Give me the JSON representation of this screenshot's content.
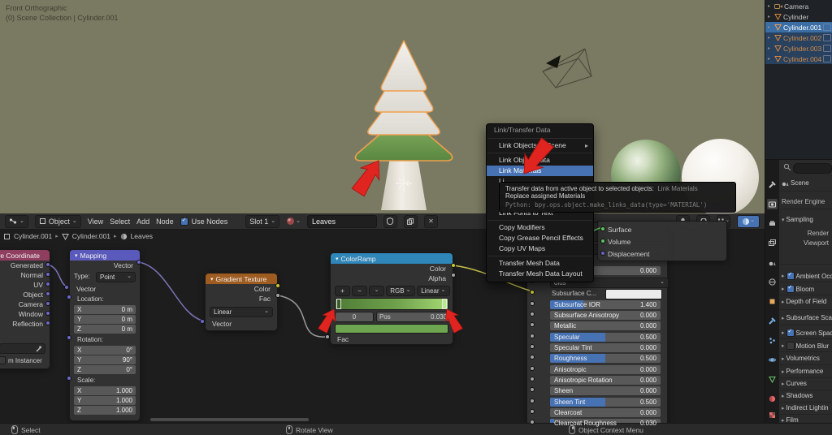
{
  "viewport": {
    "view_label": "Front Orthographic",
    "collection_label": "(0) Scene Collection | Cylinder.001"
  },
  "outliner": {
    "items": [
      {
        "label": "Camera"
      },
      {
        "label": "Cylinder"
      },
      {
        "label": "Cylinder.001"
      },
      {
        "label": "Cylinder.002"
      },
      {
        "label": "Cylinder.003"
      },
      {
        "label": "Cylinder.004"
      }
    ]
  },
  "properties": {
    "scene_label": "Scene",
    "render_engine_label": "Render Engine",
    "sampling_title": "Sampling",
    "sampling_rows": [
      "Render",
      "Viewport"
    ],
    "sections": [
      {
        "label": "Ambient Occ"
      },
      {
        "label": "Bloom"
      },
      {
        "label": "Depth of Field"
      },
      {
        "label": "Subsurface Sca"
      },
      {
        "label": "Screen Spac"
      },
      {
        "label": "Motion Blur"
      },
      {
        "label": "Volumetrics"
      },
      {
        "label": "Performance"
      },
      {
        "label": "Curves"
      },
      {
        "label": "Shadows"
      },
      {
        "label": "Indirect Lightin"
      },
      {
        "label": "Film"
      }
    ]
  },
  "shader": {
    "mode": "Object",
    "menu_view": "View",
    "menu_select": "Select",
    "menu_add": "Add",
    "menu_node": "Node",
    "use_nodes": "Use Nodes",
    "slot": "Slot 1",
    "material_name": "Leaves",
    "breadcrumb": {
      "a": "Cylinder.001",
      "b": "Cylinder.001",
      "c": "Leaves"
    }
  },
  "nodes": {
    "texcoord": {
      "title": "ure Coordinate",
      "outputs": [
        "Generated",
        "Normal",
        "UV",
        "Object",
        "Camera",
        "Window",
        "Reflection"
      ],
      "instancer": "m Instancer"
    },
    "mapping": {
      "title": "Mapping",
      "output": "Vector",
      "type_label": "Type:",
      "type_value": "Point",
      "input": "Vector",
      "loc_label": "Location:",
      "rot_label": "Rotation:",
      "scale_label": "Scale:",
      "loc": [
        {
          "k": "X",
          "v": "0 m"
        },
        {
          "k": "Y",
          "v": "0 m"
        },
        {
          "k": "Z",
          "v": "0 m"
        }
      ],
      "rot": [
        {
          "k": "X",
          "v": "0°"
        },
        {
          "k": "Y",
          "v": "90°"
        },
        {
          "k": "Z",
          "v": "0°"
        }
      ],
      "scale": [
        {
          "k": "X",
          "v": "1.000"
        },
        {
          "k": "Y",
          "v": "1.000"
        },
        {
          "k": "Z",
          "v": "1.000"
        }
      ]
    },
    "gradient": {
      "title": "Gradient Texture",
      "out_color": "Color",
      "out_fac": "Fac",
      "mode": "Linear",
      "input": "Vector"
    },
    "colorramp": {
      "title": "ColorRamp",
      "out_color": "Color",
      "out_alpha": "Alpha",
      "btn_add": "+",
      "btn_sub": "−",
      "mode_rgb": "RGB",
      "mode_interp": "Linear",
      "index": "0",
      "pos_label": "Pos",
      "pos_value": "0.030",
      "input": "Fac"
    },
    "output": {
      "surface": "Surface",
      "volume": "Volume",
      "displacement": "Displacement"
    },
    "principled": {
      "subsurface_value": "0.000",
      "radius_fragment": "dius",
      "color_label": "Subsurface C...",
      "sliders": [
        {
          "label": "Subsurface IOR",
          "value": "1.400",
          "fill": 30
        },
        {
          "label": "Subsurface Anisotropy",
          "value": "0.000",
          "fill": 0
        },
        {
          "label": "Metallic",
          "value": "0.000",
          "fill": 0
        },
        {
          "label": "Specular",
          "value": "0.500",
          "fill": 50
        },
        {
          "label": "Specular Tint",
          "value": "0.000",
          "fill": 0
        },
        {
          "label": "Roughness",
          "value": "0.500",
          "fill": 50
        },
        {
          "label": "Anisotropic",
          "value": "0.000",
          "fill": 0
        },
        {
          "label": "Anisotropic Rotation",
          "value": "0.000",
          "fill": 0
        },
        {
          "label": "Sheen",
          "value": "0.000",
          "fill": 0
        },
        {
          "label": "Sheen Tint",
          "value": "0.500",
          "fill": 50
        },
        {
          "label": "Clearcoat",
          "value": "0.000",
          "fill": 0
        },
        {
          "label": "Clearcoat Roughness",
          "value": "0.030",
          "fill": 4
        }
      ]
    }
  },
  "menu": {
    "title": "Link/Transfer Data",
    "items": [
      "Link Objects to Scene",
      "Link Object Data",
      "Link Materials",
      "Li",
      "Li",
      "Li",
      "Link Fonts to Text",
      "Copy Modifiers",
      "Copy Grease Pencil Effects",
      "Copy UV Maps",
      "Transfer Mesh Data",
      "Transfer Mesh Data Layout"
    ]
  },
  "tooltip": {
    "line1": "Transfer data from active object to selected objects:",
    "line1b": "Link Materials",
    "line2": "Replace assigned Materials",
    "line3": "Python: bpy.ops.object.make_links_data(type='MATERIAL')"
  },
  "statusbar": {
    "select": "Select",
    "rotate": "Rotate View",
    "context": "Object Context Menu"
  }
}
